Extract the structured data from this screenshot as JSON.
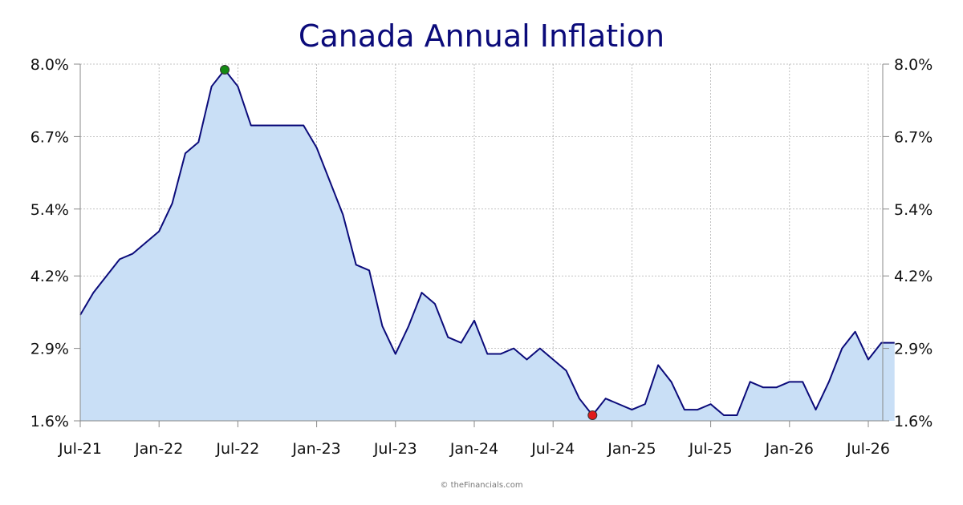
{
  "chart_data": {
    "type": "area",
    "title": "Canada Annual Inflation",
    "xlabel": "",
    "ylabel": "",
    "credit": "© theFinancials.com",
    "ylim": [
      1.6,
      8.0
    ],
    "y_ticks": [
      "8.0%",
      "6.7%",
      "5.4%",
      "4.2%",
      "2.9%",
      "1.6%"
    ],
    "y_tick_values": [
      8.0,
      6.7,
      5.4,
      4.2,
      2.9,
      1.6
    ],
    "x_ticks": [
      "Jul-21",
      "Jan-22",
      "Jul-22",
      "Jan-23",
      "Jul-23",
      "Jan-24",
      "Jul-24",
      "Jan-25",
      "Jul-25",
      "Jan-26",
      "Jul-26"
    ],
    "x_tick_months": [
      0,
      6,
      12,
      18,
      24,
      30,
      36,
      42,
      48,
      54,
      60
    ],
    "grid": true,
    "legend": "none",
    "series": [
      {
        "values": [
          3.5,
          3.9,
          4.2,
          4.5,
          4.6,
          4.8,
          5.0,
          5.5,
          6.4,
          6.6,
          7.6,
          7.9,
          7.6,
          6.9,
          6.9,
          6.9,
          6.9,
          6.9,
          6.5,
          5.9,
          5.3,
          4.4,
          4.3,
          3.3,
          2.8,
          3.3,
          3.9,
          3.7,
          3.1,
          3.0,
          3.4,
          2.8,
          2.8,
          2.9,
          2.7,
          2.9,
          2.7,
          2.5,
          2.0,
          1.7,
          2.0,
          1.9,
          1.8,
          1.9,
          2.6,
          2.3,
          1.8,
          1.8,
          1.9,
          1.7,
          1.7,
          2.3,
          2.2,
          2.2,
          2.3,
          2.3,
          1.8,
          2.3,
          2.9,
          3.2,
          2.7,
          3.0,
          3.0
        ]
      }
    ],
    "max_marker_index": 11,
    "min_marker_index": 39,
    "colors": {
      "line": "#0b0b7a",
      "fill": "#c9dff6",
      "title": "#0b0b7a",
      "max_marker": "#138a13",
      "min_marker": "#e01b1b",
      "grid": "#b0b0b0"
    }
  }
}
